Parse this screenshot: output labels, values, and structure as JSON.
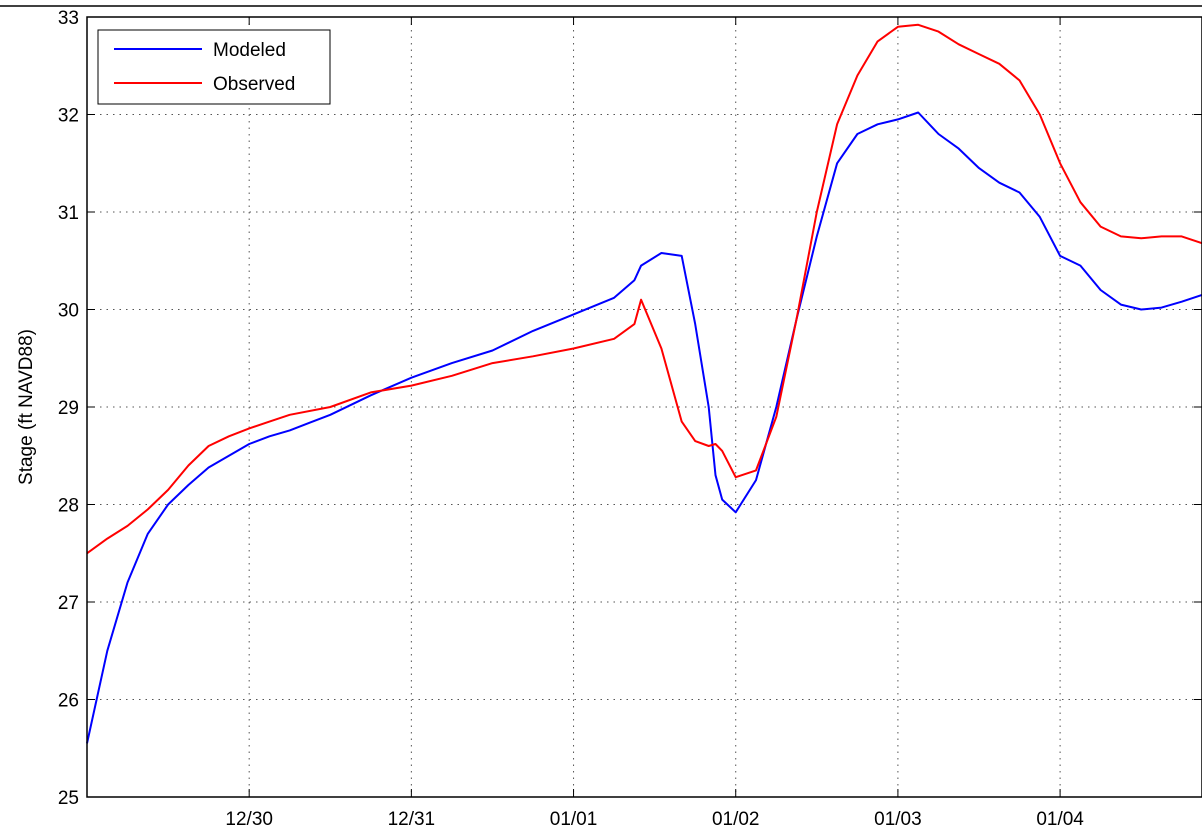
{
  "chart_data": {
    "type": "line",
    "title": "",
    "xlabel": "",
    "ylabel": "Stage (ft NAVD88)",
    "ylim": [
      25,
      33
    ],
    "yticks": [
      25,
      26,
      27,
      28,
      29,
      30,
      31,
      32,
      33
    ],
    "xlim": [
      "12/29 00:00",
      "01/04 21:00"
    ],
    "xticks": [
      "12/30",
      "12/31",
      "01/01",
      "01/02",
      "01/03",
      "01/04"
    ],
    "grid": true,
    "legend_position": "top-left",
    "series": [
      {
        "name": "Modeled",
        "color": "#0000ff",
        "x": [
          "12/29 00:00",
          "12/29 03:00",
          "12/29 06:00",
          "12/29 09:00",
          "12/29 12:00",
          "12/29 15:00",
          "12/29 18:00",
          "12/29 21:00",
          "12/30 00:00",
          "12/30 03:00",
          "12/30 06:00",
          "12/30 09:00",
          "12/30 12:00",
          "12/30 18:00",
          "12/31 00:00",
          "12/31 06:00",
          "12/31 12:00",
          "12/31 18:00",
          "01/01 00:00",
          "01/01 06:00",
          "01/01 09:00",
          "01/01 10:00",
          "01/01 13:00",
          "01/01 16:00",
          "01/01 18:00",
          "01/01 20:00",
          "01/01 21:00",
          "01/01 22:00",
          "01/02 00:00",
          "01/02 03:00",
          "01/02 06:00",
          "01/02 09:00",
          "01/02 12:00",
          "01/02 15:00",
          "01/02 18:00",
          "01/02 21:00",
          "01/03 00:00",
          "01/03 03:00",
          "01/03 06:00",
          "01/03 09:00",
          "01/03 12:00",
          "01/03 15:00",
          "01/03 18:00",
          "01/03 21:00",
          "01/04 00:00",
          "01/04 03:00",
          "01/04 06:00",
          "01/04 09:00",
          "01/04 12:00",
          "01/04 15:00",
          "01/04 18:00",
          "01/04 21:00"
        ],
        "y": [
          25.55,
          26.5,
          27.2,
          27.7,
          28.0,
          28.2,
          28.38,
          28.5,
          28.62,
          28.7,
          28.76,
          28.84,
          28.92,
          29.12,
          29.3,
          29.45,
          29.58,
          29.78,
          29.95,
          30.12,
          30.3,
          30.45,
          30.58,
          30.55,
          29.85,
          29.0,
          28.3,
          28.05,
          27.92,
          28.25,
          29.0,
          29.9,
          30.75,
          31.5,
          31.8,
          31.9,
          31.95,
          32.02,
          31.8,
          31.65,
          31.45,
          31.3,
          31.2,
          30.95,
          30.55,
          30.45,
          30.2,
          30.05,
          30.0,
          30.02,
          30.08,
          30.15
        ],
        "numeric_y_overrides": null
      },
      {
        "name": "Observed",
        "color": "#ff0000",
        "x": [
          "12/29 00:00",
          "12/29 03:00",
          "12/29 06:00",
          "12/29 09:00",
          "12/29 12:00",
          "12/29 15:00",
          "12/29 18:00",
          "12/29 21:00",
          "12/30 00:00",
          "12/30 03:00",
          "12/30 06:00",
          "12/30 12:00",
          "12/30 18:00",
          "12/31 00:00",
          "12/31 06:00",
          "12/31 12:00",
          "12/31 18:00",
          "01/01 00:00",
          "01/01 06:00",
          "01/01 09:00",
          "01/01 10:00",
          "01/01 13:00",
          "01/01 16:00",
          "01/01 18:00",
          "01/01 20:00",
          "01/01 21:00",
          "01/01 22:00",
          "01/02 00:00",
          "01/02 03:00",
          "01/02 06:00",
          "01/02 09:00",
          "01/02 12:00",
          "01/02 15:00",
          "01/02 18:00",
          "01/02 21:00",
          "01/03 00:00",
          "01/03 03:00",
          "01/03 06:00",
          "01/03 09:00",
          "01/03 12:00",
          "01/03 15:00",
          "01/03 18:00",
          "01/03 21:00",
          "01/04 00:00",
          "01/04 03:00",
          "01/04 06:00",
          "01/04 09:00",
          "01/04 12:00",
          "01/04 15:00",
          "01/04 18:00",
          "01/04 21:00"
        ],
        "y": [
          27.5,
          27.65,
          27.78,
          27.95,
          28.15,
          28.4,
          28.6,
          28.7,
          28.78,
          28.85,
          28.92,
          29.0,
          29.15,
          29.22,
          29.32,
          29.45,
          29.52,
          29.6,
          29.7,
          29.85,
          30.1,
          29.6,
          28.85,
          28.65,
          28.6,
          28.62,
          28.55,
          28.28,
          28.35,
          28.9,
          29.9,
          31.0,
          31.9,
          32.4,
          32.75,
          32.9,
          32.92,
          32.85,
          32.72,
          32.62,
          32.52,
          32.35,
          32.0,
          31.5,
          31.1,
          30.85,
          30.75,
          30.73,
          30.75,
          30.75,
          30.68
        ]
      }
    ]
  }
}
